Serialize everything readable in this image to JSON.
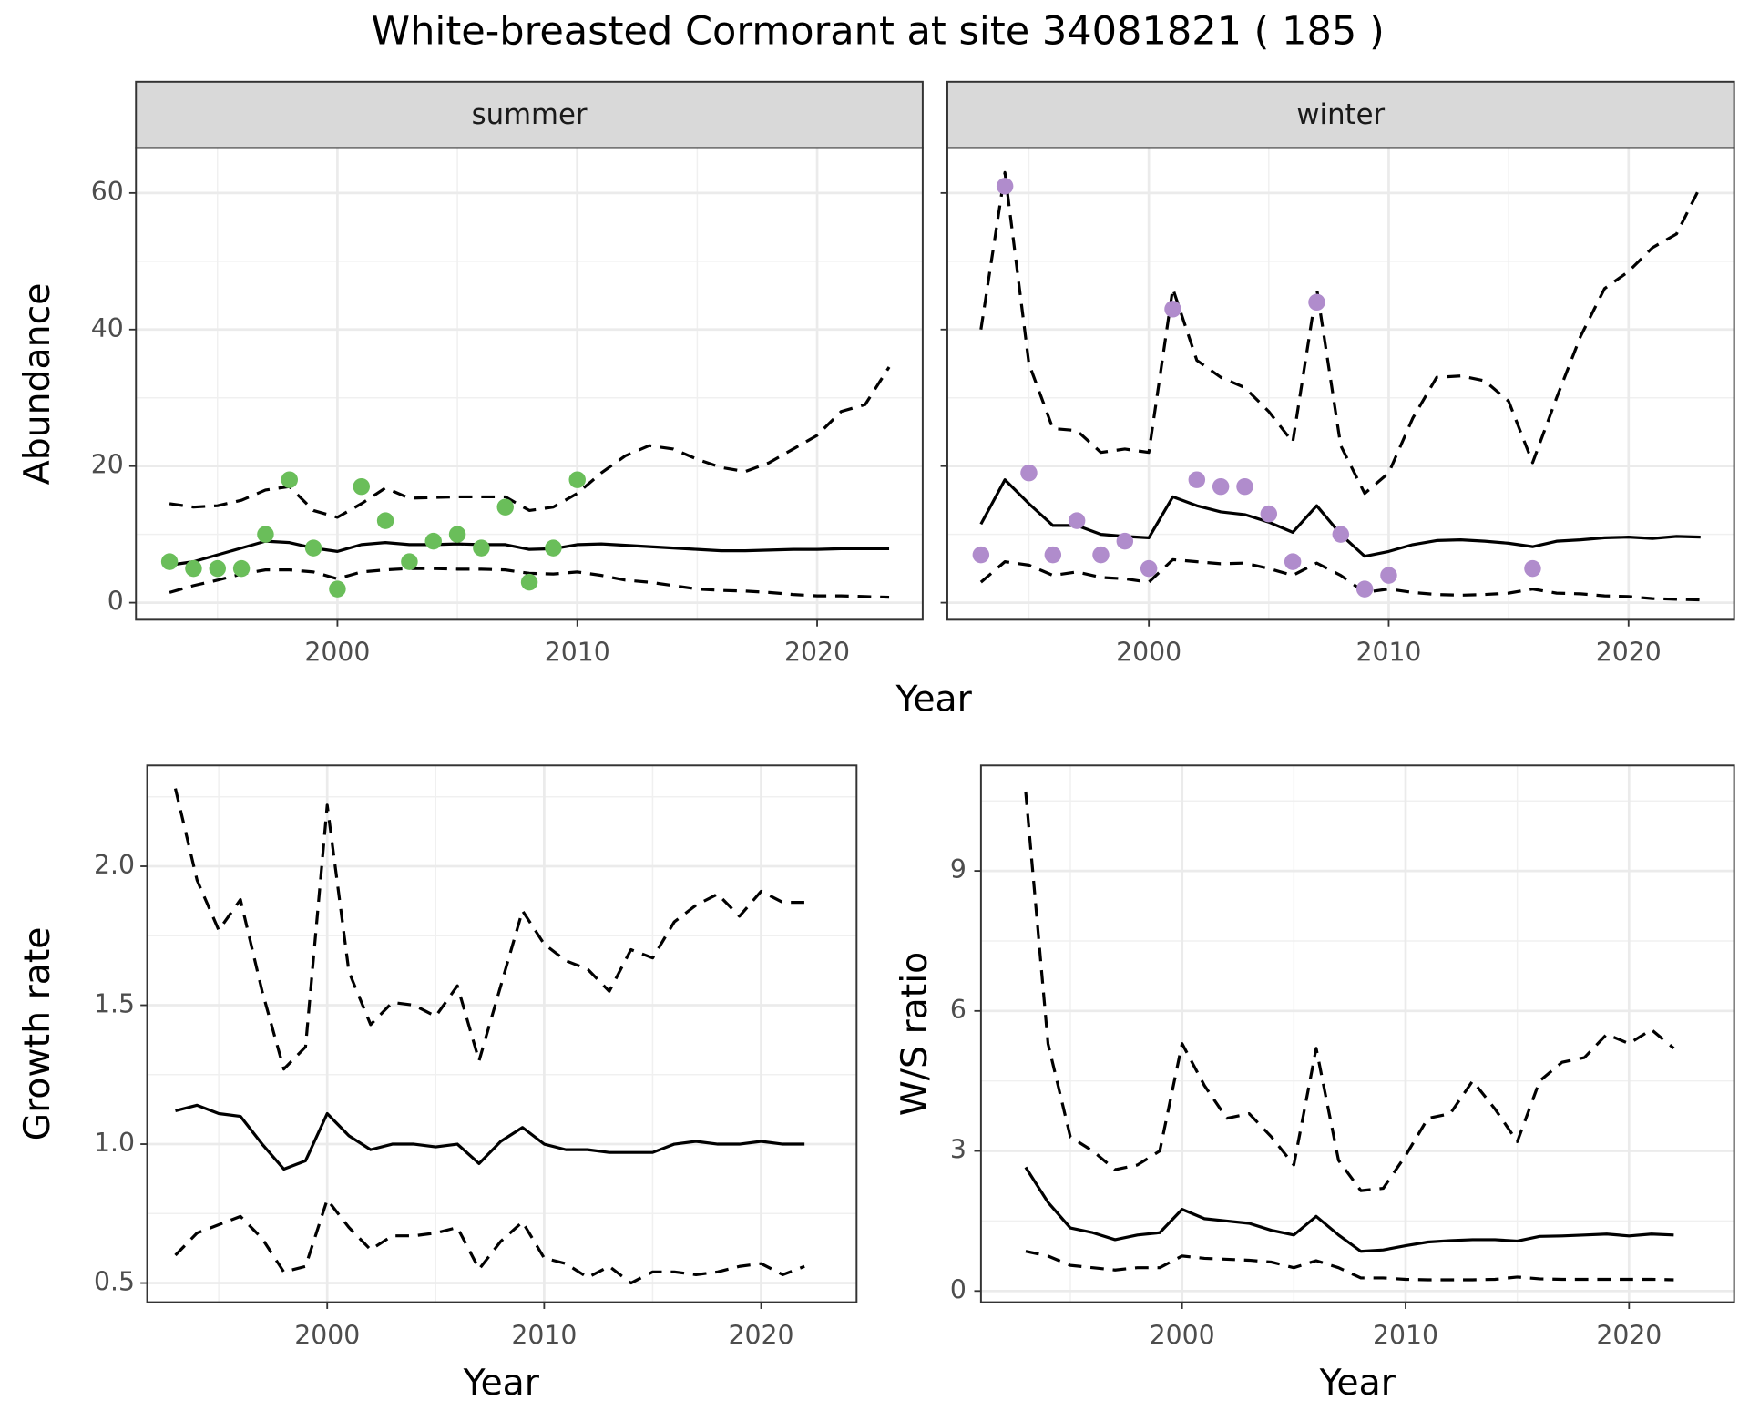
{
  "title": "White-breasted Cormorant at site 34081821 ( 185 )",
  "chart_data": [
    {
      "type": "line",
      "facet": "summer",
      "x_label": "Year",
      "y_label": "Abundance",
      "grid": true,
      "x": [
        1993,
        1994,
        1995,
        1996,
        1997,
        1998,
        1999,
        2000,
        2001,
        2002,
        2003,
        2004,
        2005,
        2006,
        2007,
        2008,
        2009,
        2010,
        2011,
        2012,
        2013,
        2014,
        2015,
        2016,
        2017,
        2018,
        2019,
        2020,
        2021,
        2022,
        2023
      ],
      "series": [
        {
          "style": "dashed",
          "color": "#000000",
          "values": [
            14.5,
            14,
            14.2,
            15,
            16.5,
            17,
            13.5,
            12.5,
            14.5,
            16.8,
            15.3,
            15.4,
            15.5,
            15.5,
            15.5,
            13.5,
            14,
            16,
            19,
            21.5,
            23,
            22.5,
            21,
            19.8,
            19.2,
            20.5,
            22.5,
            24.5,
            28,
            29,
            34.5
          ]
        },
        {
          "style": "dashed",
          "color": "#000000",
          "values": [
            1.5,
            2.5,
            3.3,
            4.2,
            4.8,
            4.8,
            4.5,
            3.5,
            4.5,
            4.8,
            5,
            5,
            4.9,
            4.9,
            4.8,
            4.3,
            4.2,
            4.5,
            4,
            3.3,
            3,
            2.5,
            2,
            1.8,
            1.7,
            1.5,
            1.2,
            1,
            1,
            0.9,
            0.8
          ]
        },
        {
          "style": "solid",
          "color": "#000000",
          "values": [
            5.5,
            6,
            7,
            8,
            9,
            8.8,
            8,
            7.5,
            8.5,
            8.8,
            8.5,
            8.5,
            8.6,
            8.5,
            8.5,
            7.8,
            7.9,
            8.5,
            8.6,
            8.4,
            8.2,
            8,
            7.8,
            7.6,
            7.6,
            7.7,
            7.8,
            7.8,
            7.9,
            7.9,
            7.9
          ]
        },
        {
          "style": "points",
          "color": "#6abe5a",
          "values": [
            6,
            5,
            5,
            5,
            10,
            18,
            8,
            2,
            17,
            12,
            6,
            9,
            10,
            8,
            14,
            3,
            8,
            18,
            null,
            null,
            null,
            null,
            null,
            null,
            null,
            null,
            null,
            null,
            null,
            null,
            null
          ]
        }
      ],
      "xlim": [
        1991.6,
        2024.4
      ],
      "ylim": [
        -2.5,
        66.6
      ],
      "xticks": [
        2000,
        2010,
        2020
      ],
      "yticks": [
        0,
        20,
        40,
        60
      ],
      "ytick_labels": true
    },
    {
      "type": "line",
      "facet": "winter",
      "grid": true,
      "x": [
        1993,
        1994,
        1995,
        1996,
        1997,
        1998,
        1999,
        2000,
        2001,
        2002,
        2003,
        2004,
        2005,
        2006,
        2007,
        2008,
        2009,
        2010,
        2011,
        2012,
        2013,
        2014,
        2015,
        2016,
        2017,
        2018,
        2019,
        2020,
        2021,
        2022,
        2023
      ],
      "series": [
        {
          "style": "dashed",
          "color": "#000000",
          "values": [
            40,
            63,
            35,
            25.5,
            25.2,
            22,
            22.5,
            22,
            46,
            35.5,
            33,
            31.5,
            28,
            23.5,
            46,
            23,
            16,
            19,
            27,
            33,
            33.2,
            32.5,
            29.5,
            20.5,
            30,
            39,
            46,
            48.5,
            52,
            54,
            61
          ]
        },
        {
          "style": "dashed",
          "color": "#000000",
          "values": [
            3,
            6,
            5.5,
            4,
            4.5,
            3.7,
            3.5,
            3,
            6.3,
            6,
            5.7,
            5.8,
            5,
            4,
            5.8,
            4,
            1.5,
            2,
            1.5,
            1.2,
            1.1,
            1.2,
            1.4,
            2,
            1.4,
            1.3,
            1,
            0.9,
            0.6,
            0.5,
            0.4
          ]
        },
        {
          "style": "solid",
          "color": "#000000",
          "values": [
            11.5,
            18,
            14.5,
            11.3,
            11.3,
            10,
            9.7,
            9.5,
            15.5,
            14.2,
            13.3,
            12.9,
            11.8,
            10.3,
            14.2,
            10,
            6.8,
            7.5,
            8.5,
            9.1,
            9.2,
            9,
            8.7,
            8.2,
            9,
            9.2,
            9.5,
            9.6,
            9.4,
            9.7,
            9.6
          ]
        },
        {
          "style": "points",
          "color": "#b08ccc",
          "values": [
            7,
            61,
            19,
            7,
            12,
            7,
            9,
            5,
            43,
            18,
            17,
            17,
            13,
            6,
            44,
            10,
            2,
            4,
            null,
            null,
            null,
            null,
            null,
            5,
            null,
            null,
            null,
            null,
            null,
            null,
            null
          ]
        }
      ],
      "xlim": [
        1991.6,
        2024.4
      ],
      "ylim": [
        -2.5,
        66.6
      ],
      "xticks": [
        2000,
        2010,
        2020
      ],
      "yticks": [
        0,
        20,
        40,
        60
      ],
      "ytick_labels": false
    },
    {
      "type": "line",
      "x_label": "Year",
      "y_label": "Growth rate",
      "grid": true,
      "x": [
        1993,
        1994,
        1995,
        1996,
        1997,
        1998,
        1999,
        2000,
        2001,
        2002,
        2003,
        2004,
        2005,
        2006,
        2007,
        2008,
        2009,
        2010,
        2011,
        2012,
        2013,
        2014,
        2015,
        2016,
        2017,
        2018,
        2019,
        2020,
        2021,
        2022
      ],
      "series": [
        {
          "style": "dashed",
          "color": "#000000",
          "values": [
            2.28,
            1.95,
            1.77,
            1.88,
            1.55,
            1.27,
            1.35,
            2.22,
            1.62,
            1.43,
            1.51,
            1.5,
            1.46,
            1.57,
            1.3,
            1.57,
            1.84,
            1.72,
            1.66,
            1.63,
            1.55,
            1.7,
            1.67,
            1.8,
            1.86,
            1.9,
            1.82,
            1.91,
            1.87,
            1.87
          ]
        },
        {
          "style": "dashed",
          "color": "#000000",
          "values": [
            0.6,
            0.68,
            0.71,
            0.74,
            0.66,
            0.54,
            0.56,
            0.8,
            0.7,
            0.62,
            0.67,
            0.67,
            0.68,
            0.7,
            0.55,
            0.65,
            0.72,
            0.59,
            0.57,
            0.52,
            0.56,
            0.5,
            0.54,
            0.54,
            0.53,
            0.54,
            0.56,
            0.57,
            0.53,
            0.56
          ]
        },
        {
          "style": "solid",
          "color": "#000000",
          "values": [
            1.12,
            1.14,
            1.11,
            1.1,
            1.0,
            0.91,
            0.94,
            1.11,
            1.03,
            0.98,
            1.0,
            1.0,
            0.99,
            1.0,
            0.93,
            1.01,
            1.06,
            1.0,
            0.98,
            0.98,
            0.97,
            0.97,
            0.97,
            1.0,
            1.01,
            1.0,
            1.0,
            1.01,
            1.0,
            1.0
          ]
        }
      ],
      "xlim": [
        1991.7,
        2024.4
      ],
      "ylim": [
        0.431,
        2.363
      ],
      "xticks": [
        2000,
        2010,
        2020
      ],
      "yticks": [
        0.5,
        {
          "value": 1,
          "label": "1.0"
        },
        1.5,
        {
          "value": 2,
          "label": "2.0"
        }
      ],
      "ytick_labels": true
    },
    {
      "type": "line",
      "x_label": "Year",
      "y_label": "W/S ratio",
      "grid": true,
      "x": [
        1993,
        1994,
        1995,
        1996,
        1997,
        1998,
        1999,
        2000,
        2001,
        2002,
        2003,
        2004,
        2005,
        2006,
        2007,
        2008,
        2009,
        2010,
        2011,
        2012,
        2013,
        2014,
        2015,
        2016,
        2017,
        2018,
        2019,
        2020,
        2021,
        2022
      ],
      "series": [
        {
          "style": "dashed",
          "color": "#000000",
          "values": [
            10.7,
            5.3,
            3.3,
            3.0,
            2.6,
            2.7,
            3.0,
            5.3,
            4.4,
            3.7,
            3.8,
            3.3,
            2.7,
            5.2,
            2.8,
            2.15,
            2.2,
            2.9,
            3.7,
            3.8,
            4.5,
            3.9,
            3.2,
            4.5,
            4.9,
            5.0,
            5.5,
            5.3,
            5.6,
            5.2
          ]
        },
        {
          "style": "dashed",
          "color": "#000000",
          "values": [
            0.85,
            0.75,
            0.55,
            0.5,
            0.45,
            0.5,
            0.5,
            0.75,
            0.7,
            0.68,
            0.66,
            0.62,
            0.5,
            0.65,
            0.5,
            0.28,
            0.28,
            0.25,
            0.24,
            0.24,
            0.24,
            0.25,
            0.3,
            0.26,
            0.25,
            0.25,
            0.25,
            0.25,
            0.25,
            0.24
          ]
        },
        {
          "style": "solid",
          "color": "#000000",
          "values": [
            2.65,
            1.9,
            1.35,
            1.25,
            1.1,
            1.2,
            1.25,
            1.75,
            1.55,
            1.5,
            1.45,
            1.3,
            1.2,
            1.6,
            1.2,
            0.85,
            0.88,
            0.97,
            1.05,
            1.08,
            1.1,
            1.1,
            1.07,
            1.17,
            1.18,
            1.2,
            1.22,
            1.18,
            1.22,
            1.2
          ]
        }
      ],
      "xlim": [
        1991.0,
        2024.7
      ],
      "ylim": [
        -0.24,
        11.26
      ],
      "xticks": [
        2000,
        2010,
        2020
      ],
      "yticks": [
        0,
        3,
        6,
        9
      ],
      "ytick_labels": true
    }
  ]
}
